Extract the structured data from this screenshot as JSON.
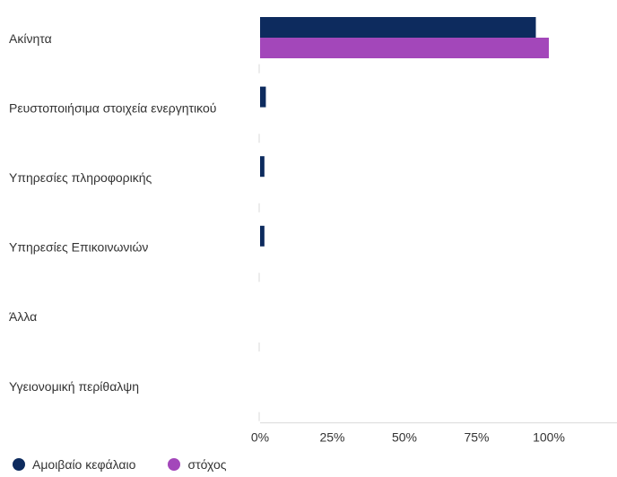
{
  "chart_data": {
    "type": "bar",
    "orientation": "horizontal",
    "categories": [
      "Ακίνητα",
      "Ρευστοποιήσιμα στοιχεία ενεργητικού",
      "Υπηρεσίες πληροφορικής",
      "Υπηρεσίες Επικοινωνιών",
      "Άλλα",
      "Υγειονομική περίθαλψη"
    ],
    "series": [
      {
        "name": "Αμοιβαίο κεφάλαιο",
        "color": "#0d2b5e",
        "values": [
          95.5,
          2.0,
          1.5,
          1.5,
          0,
          0
        ]
      },
      {
        "name": "στόχος",
        "color": "#a347ba",
        "values": [
          100,
          0,
          0,
          0,
          0,
          0
        ]
      }
    ],
    "xlim": [
      0,
      125
    ],
    "ticks": [
      {
        "value": 0,
        "label": "0%"
      },
      {
        "value": 25,
        "label": "25%"
      },
      {
        "value": 50,
        "label": "50%"
      },
      {
        "value": 75,
        "label": "75%"
      },
      {
        "value": 100,
        "label": "100%"
      }
    ],
    "legend": "bottom-left",
    "grid": false
  }
}
